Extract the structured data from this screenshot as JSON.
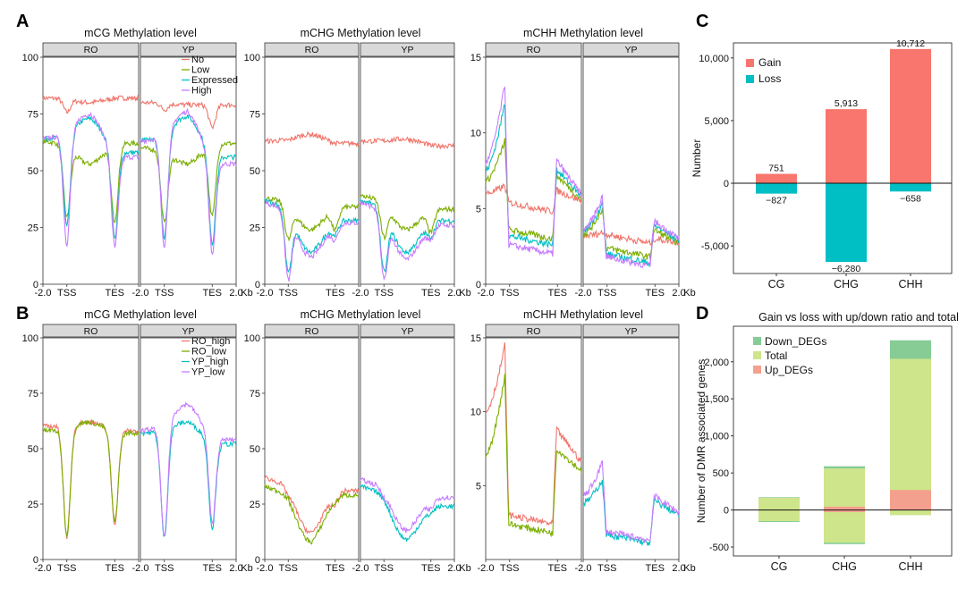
{
  "panel_labels": {
    "A": "A",
    "B": "B",
    "C": "C",
    "D": "D"
  },
  "facets": [
    "RO",
    "YP"
  ],
  "colors": {
    "No": "#F0756B",
    "Low": "#7CAE00",
    "Expressed": "#00BFC4",
    "High": "#C77CFF",
    "RO_high": "#F0756B",
    "RO_low": "#7CAE00",
    "YP_high": "#00BFC4",
    "YP_low": "#C77CFF",
    "gain": "#F8766D",
    "loss": "#00BFC4",
    "down": "#86CC94",
    "total": "#CFE58B",
    "up": "#F4A08E",
    "strip": "#D9D9D9"
  },
  "chart_data": [
    {
      "id": "A-mCG",
      "type": "line",
      "title": "mCG Methylation level",
      "ylim": [
        0,
        100
      ],
      "yticks": [
        "0",
        "25",
        "50",
        "75",
        "100"
      ],
      "xticks": [
        "-2.0",
        "TSS",
        "TES",
        "2.0"
      ],
      "x_unit": "Kb",
      "x_range": [
        -2,
        2
      ],
      "legend": [
        "No",
        "Low",
        "Expressed",
        "High"
      ],
      "series": [
        {
          "facet": "RO",
          "name": "No",
          "profile": {
            "u": 82,
            "g": 80,
            "d": 82,
            "dip": [
              6,
              0
            ]
          }
        },
        {
          "facet": "RO",
          "name": "Low",
          "profile": {
            "u": 63,
            "g": 53,
            "d": 62,
            "dip": [
              32,
              34
            ]
          }
        },
        {
          "facet": "RO",
          "name": "Expressed",
          "profile": {
            "u": 64,
            "g": 73,
            "d": 58,
            "dip": [
              40,
              38
            ]
          }
        },
        {
          "facet": "RO",
          "name": "High",
          "profile": {
            "u": 64,
            "g": 75,
            "d": 56,
            "dip": [
              48,
              40
            ]
          }
        },
        {
          "facet": "YP",
          "name": "No",
          "profile": {
            "u": 80,
            "g": 79,
            "d": 79,
            "dip": [
              3,
              10
            ]
          }
        },
        {
          "facet": "YP",
          "name": "Low",
          "profile": {
            "u": 60,
            "g": 53,
            "d": 62,
            "dip": [
              32,
              32
            ]
          }
        },
        {
          "facet": "YP",
          "name": "Expressed",
          "profile": {
            "u": 63,
            "g": 74,
            "d": 56,
            "dip": [
              45,
              38
            ]
          }
        },
        {
          "facet": "YP",
          "name": "High",
          "profile": {
            "u": 63,
            "g": 76,
            "d": 53,
            "dip": [
              48,
              40
            ]
          }
        }
      ]
    },
    {
      "id": "A-mCHG",
      "type": "line",
      "title": "mCHG Methylation level",
      "ylim": [
        0,
        100
      ],
      "yticks": [
        "0",
        "25",
        "50",
        "75",
        "100"
      ],
      "xticks": [
        "-2.0",
        "TSS",
        "TES",
        "2.0"
      ],
      "x_unit": "Kb",
      "x_range": [
        -2,
        2
      ],
      "series": [
        {
          "facet": "RO",
          "name": "No",
          "profile": {
            "u": 63,
            "g": 66,
            "d": 62,
            "dip": [
              0,
              0
            ]
          }
        },
        {
          "facet": "RO",
          "name": "Low",
          "profile": {
            "u": 38,
            "g": 24,
            "d": 34,
            "dip": [
              16,
              10
            ]
          }
        },
        {
          "facet": "RO",
          "name": "Expressed",
          "profile": {
            "u": 37,
            "g": 14,
            "d": 28,
            "dip": [
              28,
              6
            ]
          }
        },
        {
          "facet": "RO",
          "name": "High",
          "profile": {
            "u": 36,
            "g": 12,
            "d": 27,
            "dip": [
              30,
              7
            ]
          }
        },
        {
          "facet": "YP",
          "name": "No",
          "profile": {
            "u": 63,
            "g": 64,
            "d": 61,
            "dip": [
              0,
              0
            ]
          }
        },
        {
          "facet": "YP",
          "name": "Low",
          "profile": {
            "u": 39,
            "g": 24,
            "d": 33,
            "dip": [
              16,
              10
            ]
          }
        },
        {
          "facet": "YP",
          "name": "Expressed",
          "profile": {
            "u": 37,
            "g": 14,
            "d": 28,
            "dip": [
              28,
              7
            ]
          }
        },
        {
          "facet": "YP",
          "name": "High",
          "profile": {
            "u": 36,
            "g": 11,
            "d": 26,
            "dip": [
              30,
              6
            ]
          }
        }
      ]
    },
    {
      "id": "A-mCHH",
      "type": "line",
      "title": "mCHH Methylation level",
      "ylim": [
        0,
        15
      ],
      "yticks": [
        "0",
        "5",
        "10",
        "15"
      ],
      "xticks": [
        "-2.0",
        "TSS",
        "TES",
        "2.0"
      ],
      "x_unit": "Kb",
      "x_range": [
        -2,
        2
      ],
      "series": [
        {
          "facet": "RO",
          "name": "No",
          "profile": {
            "mode": "chh",
            "u0": 6,
            "peak": 6.5,
            "g": 4.8,
            "d": 5.5,
            "tes": 6.2
          }
        },
        {
          "facet": "RO",
          "name": "Low",
          "profile": {
            "mode": "chh",
            "u0": 6.8,
            "peak": 9.5,
            "g": 3.0,
            "d": 5.6,
            "tes": 7.2
          }
        },
        {
          "facet": "RO",
          "name": "Expressed",
          "profile": {
            "mode": "chh",
            "u0": 7.5,
            "peak": 12,
            "g": 2.6,
            "d": 5.8,
            "tes": 7.6
          }
        },
        {
          "facet": "RO",
          "name": "High",
          "profile": {
            "mode": "chh",
            "u0": 8,
            "peak": 13.2,
            "g": 2.0,
            "d": 5.9,
            "tes": 8.2
          }
        },
        {
          "facet": "YP",
          "name": "No",
          "profile": {
            "mode": "chh",
            "u0": 3.2,
            "peak": 3.4,
            "g": 2.7,
            "d": 2.8,
            "tes": 3.0
          }
        },
        {
          "facet": "YP",
          "name": "Low",
          "profile": {
            "mode": "chh",
            "u0": 3.3,
            "peak": 5.0,
            "g": 1.8,
            "d": 2.7,
            "tes": 3.6
          }
        },
        {
          "facet": "YP",
          "name": "Expressed",
          "profile": {
            "mode": "chh",
            "u0": 3.5,
            "peak": 5.4,
            "g": 1.4,
            "d": 2.9,
            "tes": 3.9
          }
        },
        {
          "facet": "YP",
          "name": "High",
          "profile": {
            "mode": "chh",
            "u0": 3.6,
            "peak": 5.8,
            "g": 1.2,
            "d": 3.0,
            "tes": 4.2
          }
        }
      ]
    },
    {
      "id": "B-mCG",
      "type": "line",
      "title": "mCG Methylation level",
      "ylim": [
        0,
        100
      ],
      "yticks": [
        "0",
        "25",
        "50",
        "75",
        "100"
      ],
      "xticks": [
        "-2.0",
        "TSS",
        "TES",
        "2.0"
      ],
      "x_unit": "Kb",
      "x_range": [
        -2,
        2
      ],
      "legend": [
        "RO_high",
        "RO_low",
        "YP_high",
        "YP_low"
      ],
      "series": [
        {
          "facet": "RO",
          "name": "RO_high",
          "profile": {
            "u": 60,
            "g": 62,
            "d": 58,
            "dip": [
              50,
              42
            ]
          }
        },
        {
          "facet": "RO",
          "name": "RO_low",
          "profile": {
            "u": 58,
            "g": 62,
            "d": 57,
            "dip": [
              48,
              40
            ]
          }
        },
        {
          "facet": "YP",
          "name": "YP_high",
          "profile": {
            "u": 57,
            "g": 62,
            "d": 52,
            "dip": [
              48,
              38
            ]
          }
        },
        {
          "facet": "YP",
          "name": "YP_low",
          "profile": {
            "u": 58,
            "g": 70,
            "d": 54,
            "dip": [
              50,
              38
            ]
          }
        }
      ]
    },
    {
      "id": "B-mCHG",
      "type": "line",
      "title": "mCHG Methylation level",
      "ylim": [
        0,
        100
      ],
      "yticks": [
        "0",
        "25",
        "50",
        "75",
        "100"
      ],
      "xticks": [
        "-2.0",
        "TSS",
        "TES",
        "2.0"
      ],
      "x_unit": "Kb",
      "x_range": [
        -2,
        2
      ],
      "series": [
        {
          "facet": "RO",
          "name": "RO_high",
          "profile": {
            "u": 37,
            "g": 12,
            "d": 31,
            "dip": [
              4,
              6
            ]
          }
        },
        {
          "facet": "RO",
          "name": "RO_low",
          "profile": {
            "u": 33,
            "g": 8,
            "d": 29,
            "dip": [
              2,
              3
            ]
          }
        },
        {
          "facet": "YP",
          "name": "YP_high",
          "profile": {
            "u": 33,
            "g": 9,
            "d": 24,
            "dip": [
              2,
              3
            ]
          }
        },
        {
          "facet": "YP",
          "name": "YP_low",
          "profile": {
            "u": 36,
            "g": 13,
            "d": 28,
            "dip": [
              4,
              5
            ]
          }
        }
      ]
    },
    {
      "id": "B-mCHH",
      "type": "line",
      "title": "mCHH Methylation level",
      "ylim": [
        0,
        15
      ],
      "yticks": [
        "5",
        "10",
        "15"
      ],
      "xticks": [
        "-2.0",
        "TSS",
        "TES",
        "2.0"
      ],
      "x_unit": "Kb",
      "x_range": [
        -2,
        2
      ],
      "series": [
        {
          "facet": "RO",
          "name": "RO_high",
          "profile": {
            "mode": "chh",
            "u0": 10,
            "peak": 14.5,
            "g": 2.4,
            "d": 6.6,
            "tes": 8.8
          }
        },
        {
          "facet": "RO",
          "name": "RO_low",
          "profile": {
            "mode": "chh",
            "u0": 7,
            "peak": 12.5,
            "g": 1.8,
            "d": 6.0,
            "tes": 7.5
          }
        },
        {
          "facet": "YP",
          "name": "YP_high",
          "profile": {
            "mode": "chh",
            "u0": 3.8,
            "peak": 5.4,
            "g": 1.1,
            "d": 3.0,
            "tes": 4.0
          }
        },
        {
          "facet": "YP",
          "name": "YP_low",
          "profile": {
            "mode": "chh",
            "u0": 4.3,
            "peak": 6.6,
            "g": 1.3,
            "d": 3.2,
            "tes": 4.3
          }
        }
      ]
    },
    {
      "id": "C",
      "type": "bar",
      "title": "",
      "categories": [
        "CG",
        "CHG",
        "CHH"
      ],
      "ylabel": "Number",
      "ylim": [
        -7200,
        11200
      ],
      "yticks": [
        "-5,000",
        "0",
        "5,000",
        "10,000"
      ],
      "legend": [
        "Gain",
        "Loss"
      ],
      "series": [
        {
          "name": "Gain",
          "values": [
            751,
            5913,
            10712
          ],
          "labels": [
            "751",
            "5,913",
            "10,712"
          ]
        },
        {
          "name": "Loss",
          "values": [
            -827,
            -6280,
            -658
          ],
          "labels": [
            "−827",
            "−6,280",
            "−658"
          ]
        }
      ]
    },
    {
      "id": "D",
      "type": "bar",
      "title": "Gain vs loss with up/down ratio and total",
      "categories": [
        "CG",
        "CHG",
        "CHH"
      ],
      "ylabel": "Number of DMR associated genes",
      "ylim": [
        -620,
        2480
      ],
      "yticks": [
        "-500",
        "0",
        "500",
        "1,000",
        "1,500",
        "2,000"
      ],
      "legend": [
        "Down_DEGs",
        "Total",
        "Up_DEGs"
      ],
      "stacks": [
        {
          "category": "CG",
          "total_pos": 165,
          "total_neg": -150,
          "down_pos": 8,
          "down_neg": 12,
          "up_pos": 0,
          "up_neg": 0
        },
        {
          "category": "CHG",
          "total_pos": 560,
          "total_neg": -440,
          "down_pos": 30,
          "down_neg": 20,
          "up_pos": 45,
          "up_neg": 28
        },
        {
          "category": "CHH",
          "total_pos": 2040,
          "total_neg": -70,
          "down_pos": 250,
          "down_neg": 0,
          "up_pos": 270,
          "up_neg": 0
        }
      ]
    }
  ]
}
